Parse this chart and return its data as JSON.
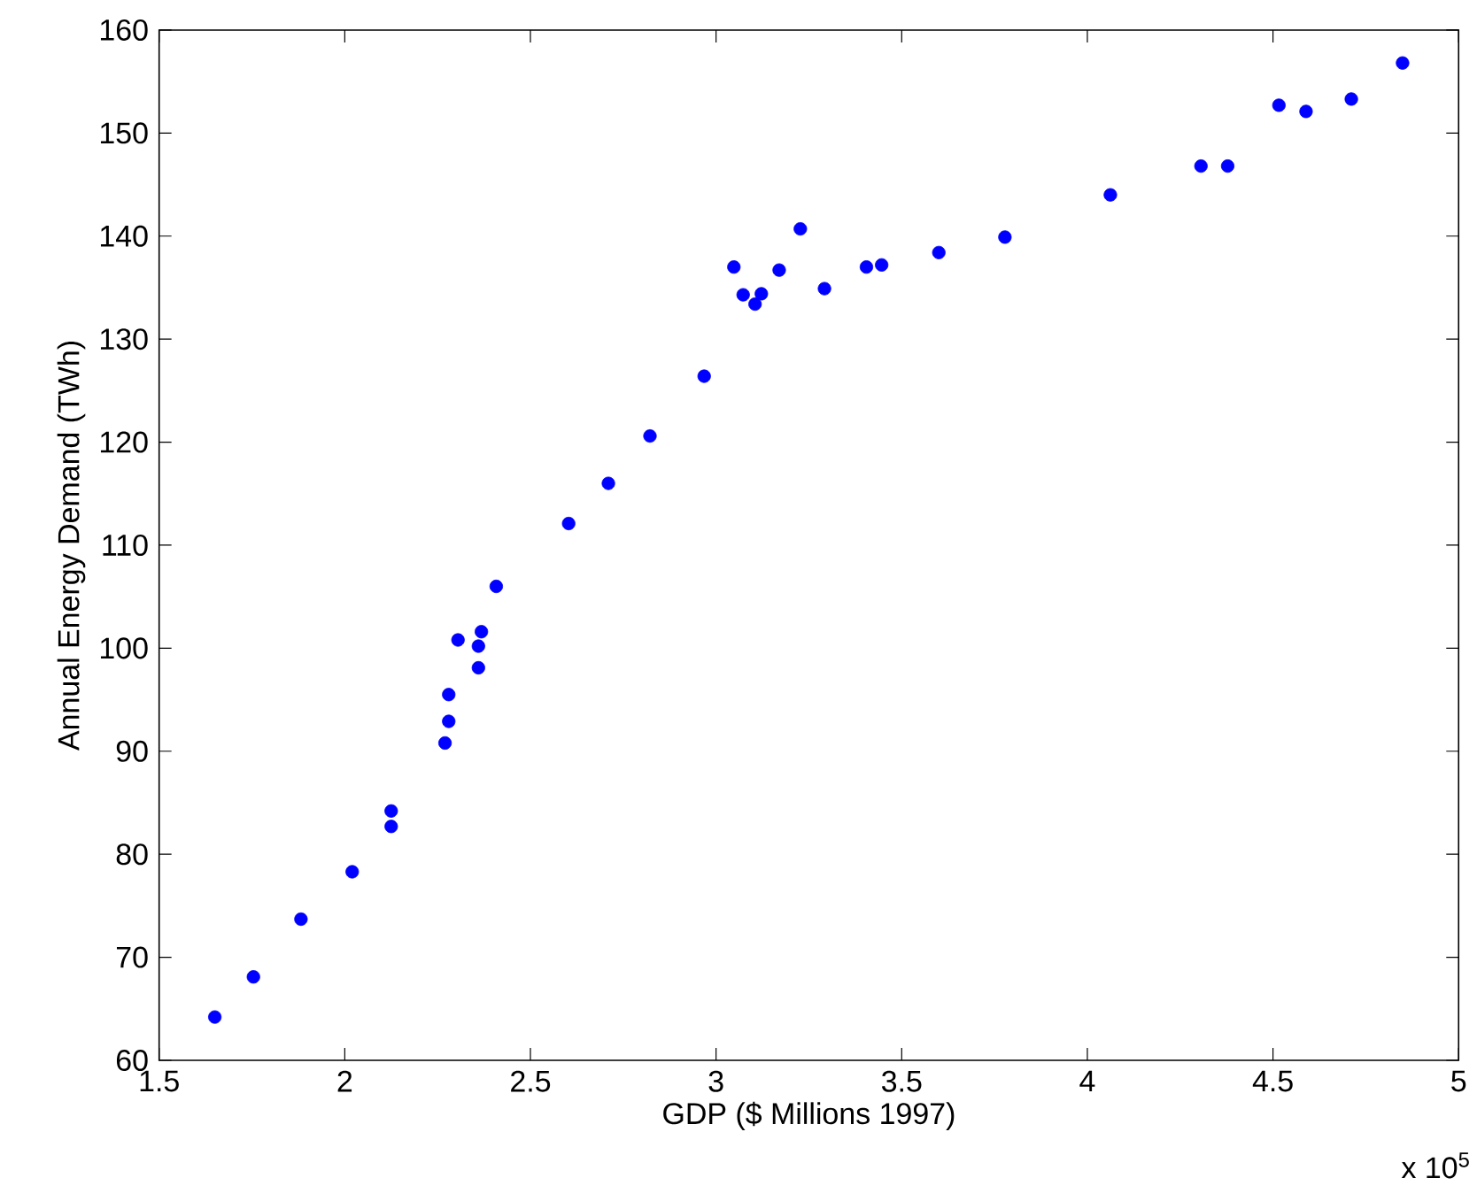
{
  "chart_data": {
    "type": "scatter",
    "xlabel": "GDP ($ Millions 1997)",
    "ylabel": "Annual Energy Demand (TWh)",
    "annotations": [
      "x 10$^{5}$"
    ],
    "x": [
      1.65,
      1.754,
      1.882,
      2.02,
      2.125,
      2.125,
      2.27,
      2.28,
      2.28,
      2.305,
      2.36,
      2.368,
      2.36,
      2.408,
      2.603,
      2.71,
      2.822,
      2.968,
      3.048,
      3.073,
      3.105,
      3.122,
      3.17,
      3.227,
      3.292,
      3.405,
      3.446,
      3.6,
      3.778,
      4.062,
      4.306,
      4.378,
      4.516,
      4.589,
      4.711,
      4.849
    ],
    "values": [
      64.2,
      68.1,
      73.7,
      78.3,
      84.2,
      82.7,
      90.8,
      92.9,
      95.5,
      100.8,
      100.2,
      101.6,
      98.1,
      106.0,
      112.1,
      116.0,
      120.6,
      126.4,
      137.0,
      134.3,
      133.4,
      134.4,
      136.7,
      140.7,
      134.9,
      137.0,
      137.2,
      138.4,
      139.9,
      144.0,
      146.8,
      146.8,
      152.7,
      152.1,
      153.3,
      156.8
    ],
    "color": "#0000ff",
    "marker": "circle",
    "xlim": [
      1.5,
      5
    ],
    "ylim": [
      60,
      160
    ],
    "xticks": [
      1.5,
      2,
      2.5,
      3,
      3.5,
      4,
      4.5,
      5
    ],
    "yticks": [
      60,
      70,
      80,
      90,
      100,
      110,
      120,
      130,
      140,
      150,
      160
    ]
  }
}
